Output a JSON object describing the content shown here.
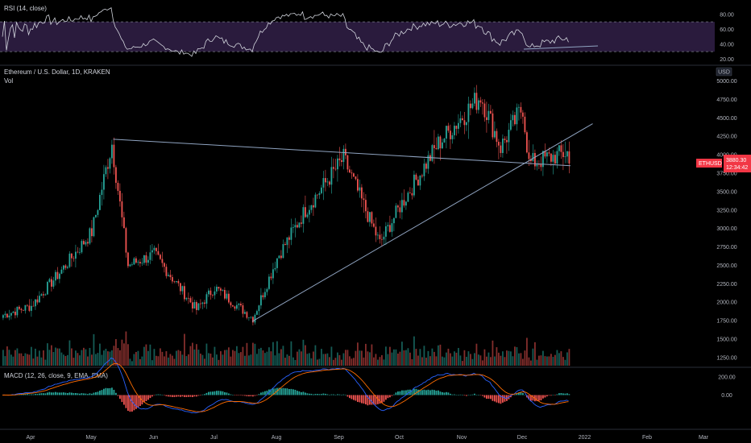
{
  "rsi": {
    "label": "RSI (14, close)",
    "ticks": [
      "80.00",
      "60.00",
      "40.00",
      "20.00"
    ],
    "tick_values": [
      80,
      60,
      40,
      20
    ],
    "range": [
      15,
      95
    ],
    "upper": 70,
    "lower": 30
  },
  "price": {
    "title": "Ethereum / U.S. Dollar, 1D, KRAKEN",
    "vol_label": "Vol",
    "currency": "USD",
    "symbol": "ETHUSD",
    "last": "3880.30",
    "countdown": "12:34:42",
    "ticks": [
      "5000.00",
      "4750.00",
      "4500.00",
      "4250.00",
      "4000.00",
      "3750.00",
      "3500.00",
      "3250.00",
      "3000.00",
      "2750.00",
      "2500.00",
      "2250.00",
      "2000.00",
      "1750.00",
      "1500.00",
      "1250.00"
    ],
    "tick_values": [
      5000,
      4750,
      4500,
      4250,
      4000,
      3750,
      3500,
      3250,
      3000,
      2750,
      2500,
      2250,
      2000,
      1750,
      1500,
      1250
    ],
    "range": [
      1140,
      5180
    ]
  },
  "macd": {
    "label": "MACD (12, 26, close, 9, EMA, EMA)",
    "ticks": [
      "200.00",
      "0.00"
    ],
    "tick_values": [
      200,
      0
    ],
    "range": [
      -350,
      270
    ]
  },
  "time_axis": {
    "labels": [
      "Apr",
      "May",
      "Jun",
      "Jul",
      "Aug",
      "Sep",
      "Oct",
      "Nov",
      "Dec",
      "2022",
      "Feb",
      "Mar"
    ]
  },
  "colors": {
    "bull": "#26a69a",
    "bear": "#ef5350",
    "rsi_line": "#d1d4dc",
    "rsi_band": "#2a1b3d",
    "trendline": "#8fa3c0",
    "macd_line": "#2962ff",
    "signal_line": "#ff6d00",
    "badge": "#f23645"
  },
  "chart_data": {
    "type": "candlestick",
    "symbol": "ETHUSD",
    "timeframe": "1D",
    "exchange": "KRAKEN",
    "x_range": [
      "Mar 2021",
      "Mar 2022"
    ],
    "y_range": [
      1250,
      5000
    ],
    "grid": false,
    "approx_closes": [
      {
        "x": "Mar 15",
        "y": 1800
      },
      {
        "x": "Apr 1",
        "y": 1950
      },
      {
        "x": "Apr 15",
        "y": 2400
      },
      {
        "x": "May 1",
        "y": 2950
      },
      {
        "x": "May 11",
        "y": 4150
      },
      {
        "x": "May 19",
        "y": 2500
      },
      {
        "x": "Jun 1",
        "y": 2650
      },
      {
        "x": "Jun 22",
        "y": 1900
      },
      {
        "x": "Jul 1",
        "y": 2200
      },
      {
        "x": "Jul 20",
        "y": 1780
      },
      {
        "x": "Aug 1",
        "y": 2600
      },
      {
        "x": "Aug 15",
        "y": 3250
      },
      {
        "x": "Sep 3",
        "y": 3950
      },
      {
        "x": "Sep 21",
        "y": 2800
      },
      {
        "x": "Oct 1",
        "y": 3300
      },
      {
        "x": "Oct 20",
        "y": 4150
      },
      {
        "x": "Nov 10",
        "y": 4800
      },
      {
        "x": "Nov 20",
        "y": 4100
      },
      {
        "x": "Dec 1",
        "y": 4650
      },
      {
        "x": "Dec 4",
        "y": 3880.3
      }
    ],
    "trendlines": [
      {
        "name": "resistance",
        "from": {
          "x": "May 12",
          "y": 4210
        },
        "to": {
          "x": "Dec 25",
          "y": 3850
        }
      },
      {
        "name": "support",
        "from": {
          "x": "Jul 20",
          "y": 1740
        },
        "to": {
          "x": "Jan 5",
          "y": 4420
        }
      }
    ]
  }
}
